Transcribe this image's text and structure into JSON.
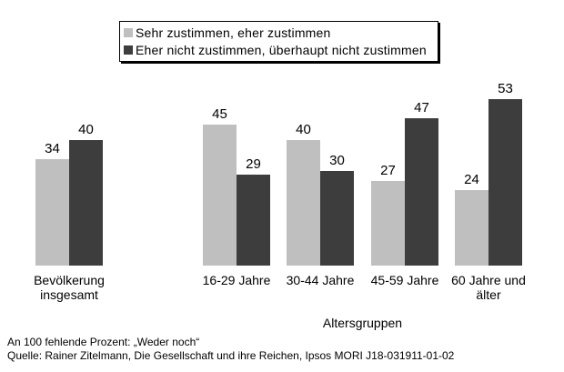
{
  "chart_data": {
    "type": "bar",
    "categories": [
      "Bevölkerung insgesamt",
      "16-29 Jahre",
      "30-44 Jahre",
      "45-59 Jahre",
      "60 Jahre und älter"
    ],
    "series": [
      {
        "name": "Sehr zustimmen, eher zustimmen",
        "color": "#bfbfbf",
        "values": [
          34,
          45,
          40,
          27,
          24
        ]
      },
      {
        "name": "Eher nicht zustimmen, überhaupt nicht zustimmen",
        "color": "#3d3d3d",
        "values": [
          40,
          29,
          30,
          47,
          53
        ]
      }
    ],
    "title": "",
    "xlabel": "Altersgruppen",
    "ylabel": "",
    "ylim": [
      0,
      58
    ],
    "grid": false,
    "legend_position": "top",
    "data_labels": true,
    "unit": "Prozent"
  },
  "footnotes": {
    "line1": "An 100 fehlende Prozent: „Weder noch“",
    "line2": "Quelle: Rainer Zitelmann, Die Gesellschaft und ihre Reichen, Ipsos MORI J18-031911-01-02"
  }
}
